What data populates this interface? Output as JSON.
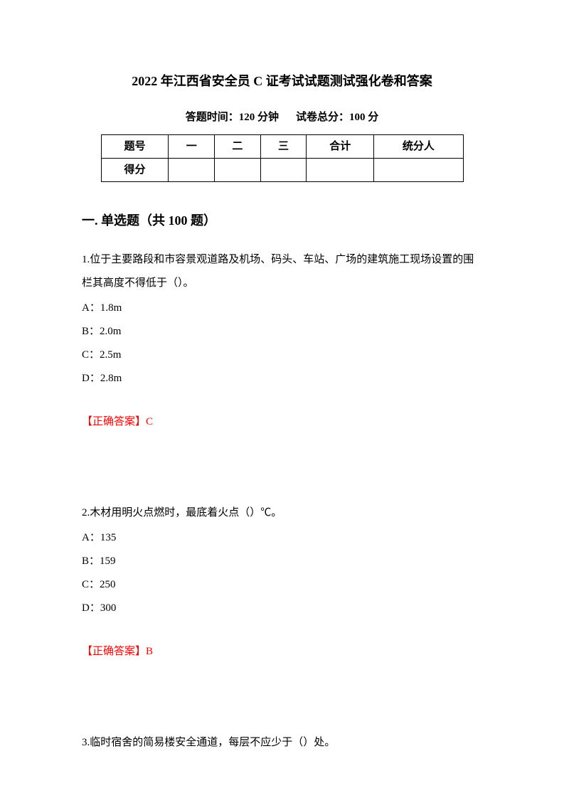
{
  "title": "2022 年江西省安全员 C 证考试试题测试强化卷和答案",
  "subtitle_time": "答题时间：120 分钟",
  "subtitle_score": "试卷总分：100 分",
  "table": {
    "headers": [
      "题号",
      "一",
      "二",
      "三",
      "合计",
      "统分人"
    ],
    "row2_label": "得分"
  },
  "section_heading": "一. 单选题（共 100 题）",
  "questions": [
    {
      "text": "1.位于主要路段和市容景观道路及机场、码头、车站、广场的建筑施工现场设置的围栏其高度不得低于（）。",
      "options": [
        "A：1.8m",
        "B：2.0m",
        "C：2.5m",
        "D：2.8m"
      ],
      "answer": "【正确答案】C"
    },
    {
      "text": "2.木材用明火点燃时，最底着火点（）℃。",
      "options": [
        "A：135",
        "B：159",
        "C：250",
        "D：300"
      ],
      "answer": "【正确答案】B"
    },
    {
      "text": "3.临时宿舍的简易楼安全通道，每层不应少于（）处。",
      "options": [],
      "answer": ""
    }
  ]
}
